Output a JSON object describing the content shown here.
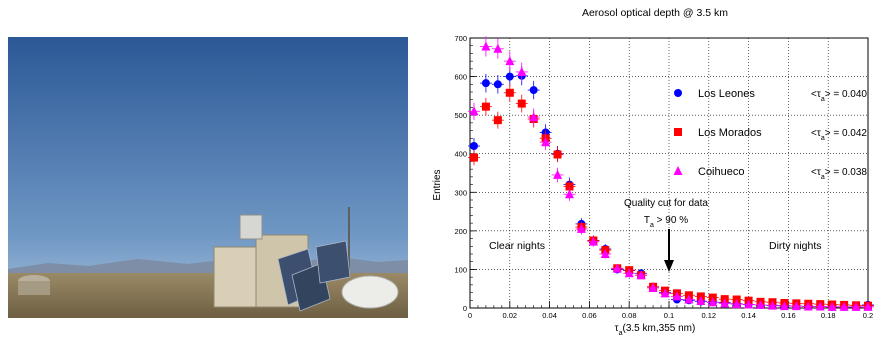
{
  "photo": {
    "alt": "",
    "sky_top": "#2f5d99",
    "sky_bottom": "#8fb0cf",
    "ground": "#8a7a5a"
  },
  "chart_data": {
    "type": "scatter",
    "title": "Aerosol optical depth @ 3.5 km",
    "xlabel_main": "τ",
    "xlabel_sub": "a",
    "xlabel_rest": "(3.5 km,355 nm)",
    "ylabel": "Entries",
    "xlim": [
      0,
      0.2
    ],
    "ylim": [
      0,
      700
    ],
    "x_ticks": [
      0,
      0.02,
      0.04,
      0.06,
      0.08,
      0.1,
      0.12,
      0.14,
      0.16,
      0.18,
      0.2
    ],
    "x_tick_labels": [
      "0",
      "0.02",
      "0.04",
      "0.06",
      "0.08",
      "0.1",
      "0.12",
      "0.14",
      "0.16",
      "0.18",
      "0.2"
    ],
    "y_ticks": [
      0,
      100,
      200,
      300,
      400,
      500,
      600,
      700
    ],
    "y_tick_labels": [
      "0",
      "100",
      "200",
      "300",
      "400",
      "500",
      "600",
      "700"
    ],
    "grid": true,
    "legend_position": "right",
    "series": [
      {
        "name": "Los Leones",
        "mean_prefix": "<τ",
        "mean_sub": "a",
        "mean_suffix": "> = 0.040",
        "color": "#0000ff",
        "marker": "circle",
        "x": [
          0.002,
          0.008,
          0.014,
          0.02,
          0.026,
          0.032,
          0.038,
          0.044,
          0.05,
          0.056,
          0.062,
          0.068,
          0.074,
          0.08,
          0.086,
          0.092,
          0.098,
          0.104,
          0.11,
          0.116,
          0.122,
          0.128,
          0.134,
          0.14,
          0.146,
          0.152,
          0.158,
          0.164,
          0.17,
          0.176,
          0.182,
          0.188,
          0.194,
          0.2
        ],
        "values": [
          420,
          583,
          580,
          600,
          602,
          565,
          455,
          400,
          320,
          218,
          175,
          153,
          100,
          97,
          90,
          55,
          40,
          22,
          20,
          17,
          15,
          14,
          11,
          9,
          8,
          7,
          6,
          5,
          4,
          4,
          3,
          3,
          3,
          8
        ]
      },
      {
        "name": "Los Morados",
        "mean_prefix": "<τ",
        "mean_sub": "a",
        "mean_suffix": "> = 0.042",
        "color": "#ff0000",
        "marker": "square",
        "x": [
          0.002,
          0.008,
          0.014,
          0.02,
          0.026,
          0.032,
          0.038,
          0.044,
          0.05,
          0.056,
          0.062,
          0.068,
          0.074,
          0.08,
          0.086,
          0.092,
          0.098,
          0.104,
          0.11,
          0.116,
          0.122,
          0.128,
          0.134,
          0.14,
          0.146,
          0.152,
          0.158,
          0.164,
          0.17,
          0.176,
          0.182,
          0.188,
          0.194,
          0.2
        ],
        "values": [
          390,
          522,
          487,
          558,
          530,
          490,
          440,
          398,
          315,
          210,
          175,
          150,
          103,
          98,
          85,
          55,
          45,
          38,
          33,
          30,
          27,
          23,
          22,
          19,
          16,
          15,
          13,
          12,
          11,
          10,
          9,
          8,
          7,
          6
        ]
      },
      {
        "name": "Coihueco",
        "mean_prefix": "<τ",
        "mean_sub": "a",
        "mean_suffix": "> = 0.038",
        "color": "#ff00ff",
        "marker": "triangle",
        "x": [
          0.002,
          0.008,
          0.014,
          0.02,
          0.026,
          0.032,
          0.038,
          0.044,
          0.05,
          0.056,
          0.062,
          0.068,
          0.074,
          0.08,
          0.086,
          0.092,
          0.098,
          0.104,
          0.11,
          0.116,
          0.122,
          0.128,
          0.134,
          0.14,
          0.146,
          0.152,
          0.158,
          0.164,
          0.17,
          0.176,
          0.182,
          0.188,
          0.194,
          0.2
        ],
        "values": [
          510,
          678,
          672,
          640,
          612,
          495,
          430,
          345,
          295,
          205,
          172,
          140,
          102,
          90,
          85,
          52,
          38,
          30,
          22,
          18,
          15,
          12,
          10,
          9,
          8,
          6,
          5,
          5,
          4,
          4,
          3,
          3,
          3,
          3
        ]
      }
    ],
    "annotations": {
      "quality_cut_line1": "Quality cut for data",
      "quality_cut_line2_main": "T",
      "quality_cut_line2_sub": "a",
      "quality_cut_line2_rest": " > 90 %",
      "quality_cut_x": 0.1,
      "clear_nights": "Clear nights",
      "dirty_nights": "Dirty nights"
    }
  }
}
